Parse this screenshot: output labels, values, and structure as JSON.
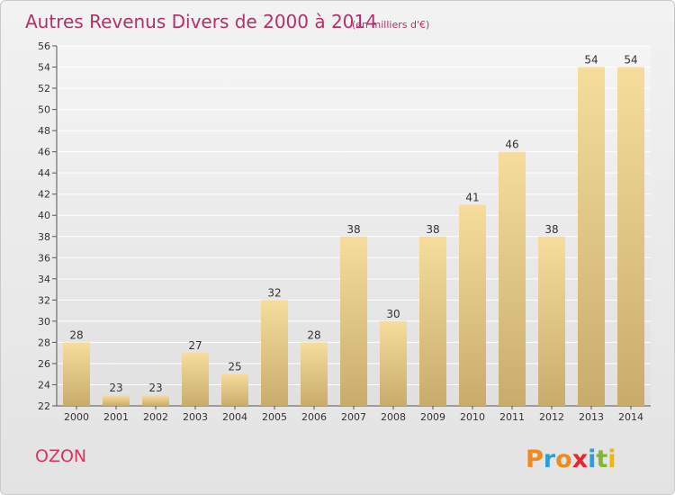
{
  "title": "Autres Revenus Divers de 2000 à 2014",
  "subtitle": "(en milliers d'€)",
  "commune": "OZON",
  "brand": {
    "letters": [
      "P",
      "r",
      "o",
      "x",
      "i",
      "t",
      "i"
    ],
    "colors": [
      "#f18a1c",
      "#2a9fd8",
      "#f18a1c",
      "#e3262f",
      "#2a9fd8",
      "#7cbb2d",
      "#f2b705"
    ]
  },
  "colors": {
    "bar_top": "#f6dd9b",
    "bar_bottom": "#c8ac6c",
    "title": "#b5306a",
    "commune": "#d8365e"
  },
  "chart_data": {
    "type": "bar",
    "title": "Autres Revenus Divers de 2000 à 2014",
    "subtitle": "(en milliers d'€)",
    "categories": [
      "2000",
      "2001",
      "2002",
      "2003",
      "2004",
      "2005",
      "2006",
      "2007",
      "2008",
      "2009",
      "2010",
      "2011",
      "2012",
      "2013",
      "2014"
    ],
    "values": [
      28,
      23,
      23,
      27,
      25,
      32,
      28,
      38,
      30,
      38,
      41,
      46,
      38,
      54,
      54
    ],
    "ylim": [
      22,
      56
    ],
    "yticks": [
      22,
      24,
      26,
      28,
      30,
      32,
      34,
      36,
      38,
      40,
      42,
      44,
      46,
      48,
      50,
      52,
      54,
      56
    ],
    "grid": true,
    "legend": "none"
  }
}
